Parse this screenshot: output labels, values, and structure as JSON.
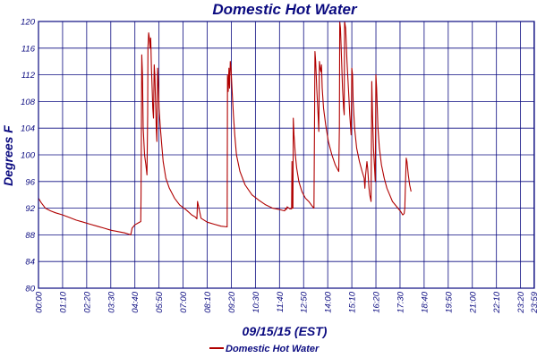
{
  "chart_data": {
    "type": "line",
    "title": "Domestic Hot Water",
    "xlabel": "09/15/15 (EST)",
    "ylabel": "Degrees F",
    "ylim": [
      80,
      120
    ],
    "xlim_minutes": [
      0,
      1440
    ],
    "yticks": [
      80,
      84,
      88,
      92,
      96,
      100,
      104,
      108,
      112,
      116,
      120
    ],
    "xticks": [
      {
        "label": "00:00",
        "minutes": 0
      },
      {
        "label": "01:10",
        "minutes": 70
      },
      {
        "label": "02:20",
        "minutes": 140
      },
      {
        "label": "03:30",
        "minutes": 210
      },
      {
        "label": "04:40",
        "minutes": 280
      },
      {
        "label": "05:50",
        "minutes": 350
      },
      {
        "label": "07:00",
        "minutes": 420
      },
      {
        "label": "08:10",
        "minutes": 490
      },
      {
        "label": "09:20",
        "minutes": 560
      },
      {
        "label": "10:30",
        "minutes": 630
      },
      {
        "label": "11:40",
        "minutes": 700
      },
      {
        "label": "12:50",
        "minutes": 770
      },
      {
        "label": "14:00",
        "minutes": 840
      },
      {
        "label": "15:10",
        "minutes": 910
      },
      {
        "label": "16:20",
        "minutes": 980
      },
      {
        "label": "17:30",
        "minutes": 1050
      },
      {
        "label": "18:40",
        "minutes": 1120
      },
      {
        "label": "19:50",
        "minutes": 1190
      },
      {
        "label": "21:00",
        "minutes": 1260
      },
      {
        "label": "22:10",
        "minutes": 1330
      },
      {
        "label": "23:20",
        "minutes": 1400
      },
      {
        "label": "23:59",
        "minutes": 1439
      }
    ],
    "grid": true,
    "legend_position": "bottom-center",
    "series": [
      {
        "name": "Domestic Hot Water",
        "color": "#b00000",
        "points": [
          [
            0,
            93.5
          ],
          [
            8,
            92.8
          ],
          [
            20,
            92.0
          ],
          [
            35,
            91.6
          ],
          [
            50,
            91.3
          ],
          [
            70,
            91.0
          ],
          [
            90,
            90.6
          ],
          [
            110,
            90.2
          ],
          [
            130,
            89.9
          ],
          [
            150,
            89.6
          ],
          [
            170,
            89.3
          ],
          [
            190,
            89.0
          ],
          [
            210,
            88.7
          ],
          [
            230,
            88.5
          ],
          [
            250,
            88.3
          ],
          [
            268,
            88.0
          ],
          [
            272,
            89.0
          ],
          [
            280,
            89.5
          ],
          [
            290,
            89.8
          ],
          [
            297,
            90.0
          ],
          [
            298,
            94.0
          ],
          [
            300,
            115.0
          ],
          [
            302,
            112.0
          ],
          [
            304,
            104.0
          ],
          [
            308,
            100.0
          ],
          [
            312,
            98.5
          ],
          [
            315,
            97.0
          ],
          [
            317,
            106.0
          ],
          [
            318,
            116.0
          ],
          [
            320,
            118.3
          ],
          [
            322,
            117.5
          ],
          [
            324,
            116.0
          ],
          [
            326,
            117.5
          ],
          [
            328,
            113.0
          ],
          [
            330,
            110.0
          ],
          [
            332,
            107.0
          ],
          [
            334,
            105.5
          ],
          [
            336,
            113.5
          ],
          [
            338,
            112.0
          ],
          [
            340,
            108.0
          ],
          [
            342,
            104.0
          ],
          [
            344,
            102.0
          ],
          [
            346,
            113.0
          ],
          [
            348,
            111.0
          ],
          [
            350,
            107.0
          ],
          [
            354,
            104.0
          ],
          [
            358,
            101.5
          ],
          [
            362,
            99.0
          ],
          [
            370,
            96.5
          ],
          [
            380,
            95.0
          ],
          [
            395,
            93.5
          ],
          [
            410,
            92.5
          ],
          [
            430,
            91.7
          ],
          [
            445,
            91.0
          ],
          [
            455,
            90.7
          ],
          [
            460,
            90.4
          ],
          [
            462,
            93.0
          ],
          [
            466,
            92.0
          ],
          [
            472,
            90.5
          ],
          [
            490,
            89.9
          ],
          [
            510,
            89.6
          ],
          [
            530,
            89.3
          ],
          [
            548,
            89.2
          ],
          [
            549,
            112.0
          ],
          [
            551,
            109.5
          ],
          [
            553,
            113.0
          ],
          [
            555,
            110.0
          ],
          [
            557,
            114.0
          ],
          [
            559,
            113.0
          ],
          [
            562,
            110.0
          ],
          [
            566,
            106.0
          ],
          [
            570,
            103.0
          ],
          [
            575,
            100.0
          ],
          [
            585,
            97.5
          ],
          [
            600,
            95.5
          ],
          [
            620,
            94.0
          ],
          [
            640,
            93.2
          ],
          [
            660,
            92.5
          ],
          [
            680,
            92.0
          ],
          [
            700,
            91.8
          ],
          [
            715,
            91.6
          ],
          [
            718,
            92.0
          ],
          [
            720,
            91.8
          ],
          [
            722,
            92.2
          ],
          [
            730,
            91.9
          ],
          [
            735,
            91.9
          ],
          [
            736,
            99.0
          ],
          [
            737,
            92.0
          ],
          [
            739,
            92.0
          ],
          [
            740,
            105.5
          ],
          [
            742,
            103.0
          ],
          [
            746,
            100.0
          ],
          [
            750,
            98.0
          ],
          [
            756,
            96.0
          ],
          [
            765,
            94.5
          ],
          [
            775,
            93.5
          ],
          [
            785,
            93.0
          ],
          [
            795,
            92.3
          ],
          [
            800,
            92.0
          ],
          [
            802,
            106.0
          ],
          [
            803,
            115.5
          ],
          [
            805,
            114.0
          ],
          [
            808,
            110.0
          ],
          [
            812,
            106.0
          ],
          [
            814,
            103.5
          ],
          [
            816,
            114.0
          ],
          [
            818,
            113.0
          ],
          [
            820,
            112.5
          ],
          [
            822,
            113.5
          ],
          [
            824,
            110.0
          ],
          [
            828,
            107.0
          ],
          [
            834,
            104.5
          ],
          [
            842,
            102.0
          ],
          [
            852,
            100.0
          ],
          [
            862,
            98.5
          ],
          [
            872,
            97.5
          ],
          [
            874,
            104.0
          ],
          [
            875,
            120.0
          ],
          [
            877,
            119.0
          ],
          [
            879,
            116.0
          ],
          [
            883,
            110.0
          ],
          [
            886,
            107.0
          ],
          [
            888,
            106.0
          ],
          [
            889,
            120.0
          ],
          [
            892,
            119.0
          ],
          [
            896,
            114.0
          ],
          [
            900,
            110.0
          ],
          [
            904,
            106.0
          ],
          [
            908,
            103.0
          ],
          [
            910,
            113.0
          ],
          [
            912,
            112.0
          ],
          [
            914,
            108.0
          ],
          [
            918,
            104.0
          ],
          [
            924,
            101.0
          ],
          [
            932,
            99.0
          ],
          [
            940,
            97.5
          ],
          [
            946,
            96.5
          ],
          [
            948,
            95.0
          ],
          [
            950,
            97.0
          ],
          [
            954,
            99.0
          ],
          [
            956,
            98.0
          ],
          [
            960,
            95.0
          ],
          [
            962,
            94.0
          ],
          [
            966,
            93.0
          ],
          [
            968,
            111.0
          ],
          [
            970,
            106.0
          ],
          [
            973,
            101.0
          ],
          [
            976,
            98.0
          ],
          [
            978,
            96.0
          ],
          [
            980,
            112.0
          ],
          [
            982,
            110.0
          ],
          [
            986,
            104.0
          ],
          [
            990,
            101.0
          ],
          [
            996,
            98.5
          ],
          [
            1004,
            96.5
          ],
          [
            1012,
            95.0
          ],
          [
            1020,
            94.0
          ],
          [
            1028,
            93.0
          ],
          [
            1036,
            92.5
          ],
          [
            1044,
            92.0
          ],
          [
            1052,
            91.5
          ],
          [
            1058,
            91.0
          ],
          [
            1062,
            91.2
          ],
          [
            1064,
            92.0
          ],
          [
            1066,
            96.0
          ],
          [
            1068,
            99.5
          ],
          [
            1070,
            99.0
          ],
          [
            1074,
            97.0
          ],
          [
            1078,
            95.5
          ],
          [
            1082,
            94.5
          ]
        ]
      }
    ]
  },
  "legend": {
    "label": "Domestic Hot Water",
    "color": "#b00000"
  }
}
